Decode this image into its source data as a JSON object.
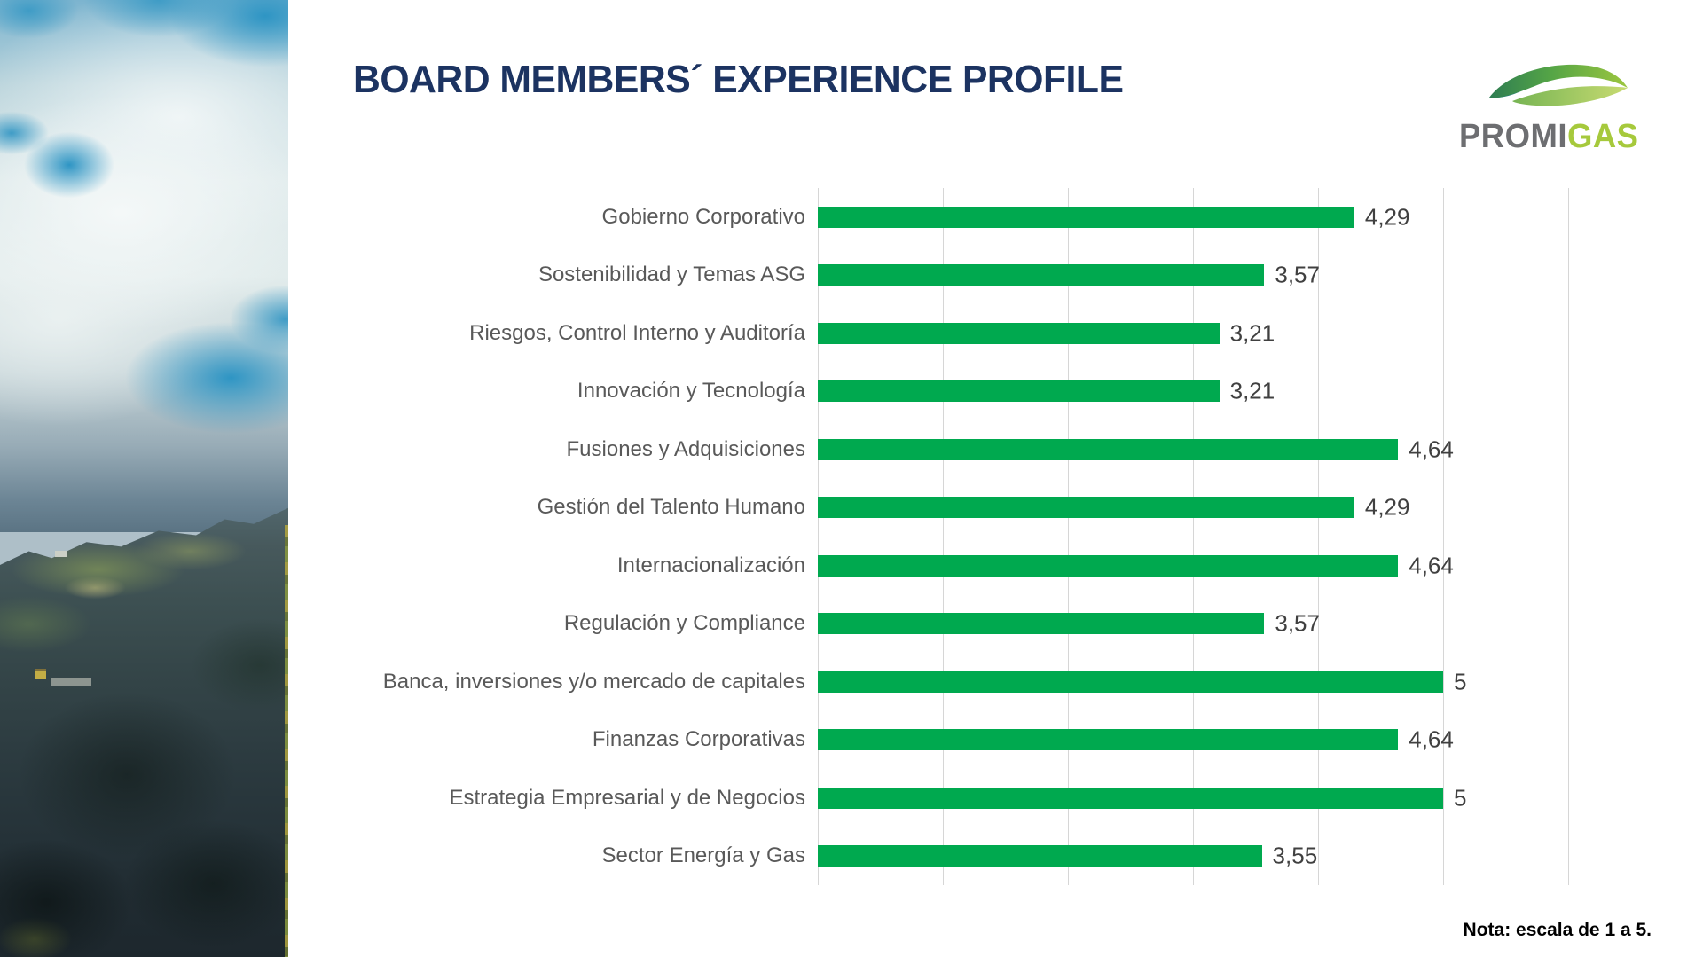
{
  "slide": {
    "title": "BOARD MEMBERS´ EXPERIENCE PROFILE",
    "note": "Nota: escala de 1 a 5.",
    "logo": {
      "primary": "PROMI",
      "secondary": "GAS"
    }
  },
  "chart_data": {
    "type": "bar",
    "orientation": "horizontal",
    "title": "BOARD MEMBERS´ EXPERIENCE PROFILE",
    "xlabel": "",
    "ylabel": "",
    "xlim": [
      0,
      6
    ],
    "gridline_values": [
      0,
      1,
      2,
      3,
      4,
      5,
      6
    ],
    "grid": "vertical-only",
    "legend": "none",
    "value_format": "comma-decimal",
    "note": "Nota: escala de 1 a 5.",
    "categories": [
      "Gobierno Corporativo",
      "Sostenibilidad y Temas ASG",
      "Riesgos, Control Interno y Auditoría",
      "Innovación y Tecnología",
      "Fusiones y Adquisiciones",
      "Gestión del Talento Humano",
      "Internacionalización",
      "Regulación y Compliance",
      "Banca, inversiones y/o mercado de capitales",
      "Finanzas Corporativas",
      "Estrategia Empresarial y de Negocios",
      "Sector Energía y Gas"
    ],
    "values": [
      4.29,
      3.57,
      3.21,
      3.21,
      4.64,
      4.29,
      4.64,
      3.57,
      5,
      4.64,
      5,
      3.55
    ],
    "value_labels": [
      "4,29",
      "3,57",
      "3,21",
      "3,21",
      "4,64",
      "4,29",
      "4,64",
      "3,57",
      "5",
      "4,64",
      "5",
      "3,55"
    ],
    "colors": {
      "bar": "#00A94F",
      "gridline": "#D6D6D6",
      "category_label": "#595959",
      "value_label": "#404040",
      "title": "#1C3361",
      "note": "#000000",
      "logo_primary": "#6D6E71",
      "logo_secondary": "#A6C93C"
    }
  }
}
